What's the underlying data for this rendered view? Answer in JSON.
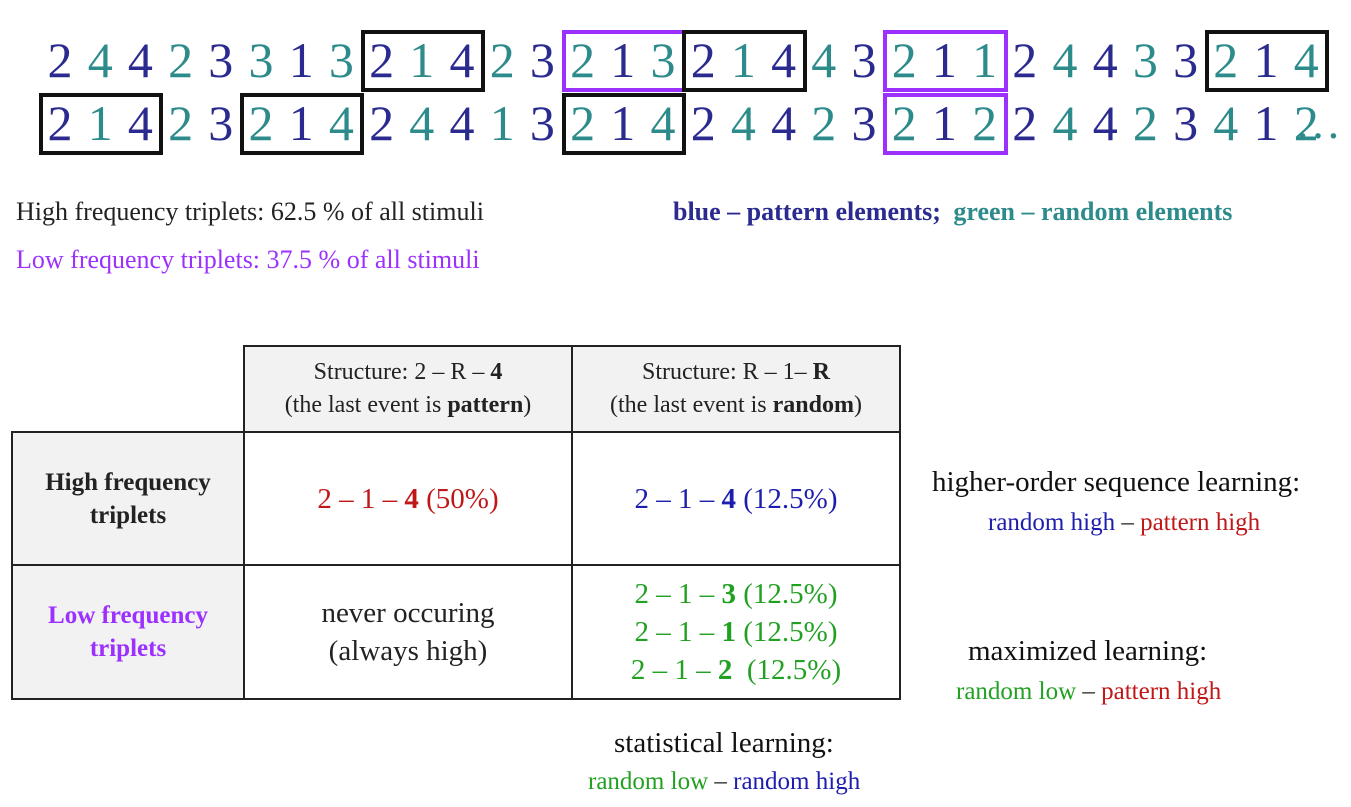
{
  "sequence": {
    "row1": [
      {
        "d": "2",
        "t": "pat"
      },
      {
        "d": "4",
        "t": "rnd"
      },
      {
        "d": "4",
        "t": "pat"
      },
      {
        "d": "2",
        "t": "rnd"
      },
      {
        "d": "3",
        "t": "pat"
      },
      {
        "d": "3",
        "t": "rnd"
      },
      {
        "d": "1",
        "t": "pat"
      },
      {
        "d": "3",
        "t": "rnd"
      },
      {
        "d": "2",
        "t": "pat"
      },
      {
        "d": "1",
        "t": "rnd"
      },
      {
        "d": "4",
        "t": "pat"
      },
      {
        "d": "2",
        "t": "rnd"
      },
      {
        "d": "3",
        "t": "pat"
      },
      {
        "d": "2",
        "t": "rnd"
      },
      {
        "d": "1",
        "t": "pat"
      },
      {
        "d": "3",
        "t": "rnd"
      },
      {
        "d": "2",
        "t": "pat"
      },
      {
        "d": "1",
        "t": "rnd"
      },
      {
        "d": "4",
        "t": "pat"
      },
      {
        "d": "4",
        "t": "rnd"
      },
      {
        "d": "3",
        "t": "pat"
      },
      {
        "d": "2",
        "t": "rnd"
      },
      {
        "d": "1",
        "t": "pat"
      },
      {
        "d": "1",
        "t": "rnd"
      },
      {
        "d": "2",
        "t": "pat"
      },
      {
        "d": "4",
        "t": "rnd"
      },
      {
        "d": "4",
        "t": "pat"
      },
      {
        "d": "3",
        "t": "rnd"
      },
      {
        "d": "3",
        "t": "pat"
      },
      {
        "d": "2",
        "t": "rnd"
      },
      {
        "d": "1",
        "t": "pat"
      },
      {
        "d": "4",
        "t": "rnd"
      }
    ],
    "row2": [
      {
        "d": "2",
        "t": "pat"
      },
      {
        "d": "1",
        "t": "rnd"
      },
      {
        "d": "4",
        "t": "pat"
      },
      {
        "d": "2",
        "t": "rnd"
      },
      {
        "d": "3",
        "t": "pat"
      },
      {
        "d": "2",
        "t": "rnd"
      },
      {
        "d": "1",
        "t": "pat"
      },
      {
        "d": "4",
        "t": "rnd"
      },
      {
        "d": "2",
        "t": "pat"
      },
      {
        "d": "4",
        "t": "rnd"
      },
      {
        "d": "4",
        "t": "pat"
      },
      {
        "d": "1",
        "t": "rnd"
      },
      {
        "d": "3",
        "t": "pat"
      },
      {
        "d": "2",
        "t": "rnd"
      },
      {
        "d": "1",
        "t": "pat"
      },
      {
        "d": "4",
        "t": "rnd"
      },
      {
        "d": "2",
        "t": "pat"
      },
      {
        "d": "4",
        "t": "rnd"
      },
      {
        "d": "4",
        "t": "pat"
      },
      {
        "d": "2",
        "t": "rnd"
      },
      {
        "d": "3",
        "t": "pat"
      },
      {
        "d": "2",
        "t": "rnd"
      },
      {
        "d": "1",
        "t": "pat"
      },
      {
        "d": "2",
        "t": "rnd"
      },
      {
        "d": "2",
        "t": "pat"
      },
      {
        "d": "4",
        "t": "rnd"
      },
      {
        "d": "4",
        "t": "pat"
      },
      {
        "d": "2",
        "t": "rnd"
      },
      {
        "d": "3",
        "t": "pat"
      },
      {
        "d": "4",
        "t": "rnd"
      },
      {
        "d": "1",
        "t": "pat"
      },
      {
        "d": "2",
        "t": "rnd"
      }
    ],
    "row1_boxes": [
      {
        "start": 8,
        "kind": "high"
      },
      {
        "start": 13,
        "kind": "low"
      },
      {
        "start": 16,
        "kind": "high"
      },
      {
        "start": 21,
        "kind": "low"
      },
      {
        "start": 29,
        "kind": "high"
      }
    ],
    "row2_boxes": [
      {
        "start": 0,
        "kind": "high"
      },
      {
        "start": 5,
        "kind": "high"
      },
      {
        "start": 13,
        "kind": "high"
      },
      {
        "start": 21,
        "kind": "low"
      }
    ],
    "ellipsis": "…"
  },
  "legend": {
    "high_text": "High frequency triplets: 62.5 % of all stimuli",
    "low_text": "Low frequency triplets: 37.5 % of all stimuli",
    "blue_text": "blue – pattern elements;",
    "green_text": "green – random elements"
  },
  "table": {
    "col1_line1": "Structure: 2 – R – ",
    "col1_line1_bold": "4",
    "col1_line2_a": "(the last event is ",
    "col1_line2_bold": "pattern",
    "col1_line2_b": ")",
    "col2_line1": "Structure: R – 1– ",
    "col2_line1_bold": "R",
    "col2_line2_a": "(the last event is ",
    "col2_line2_bold": "random",
    "col2_line2_b": ")",
    "row1_label_1": "High frequency",
    "row1_label_2": "triplets",
    "row2_label_1": "Low frequency",
    "row2_label_2": "triplets",
    "r1c1_a": "2 – 1 – ",
    "r1c1_b": "4",
    "r1c1_c": " (50%)",
    "r1c2_a": "2 – 1 – ",
    "r1c2_b": "4",
    "r1c2_c": " (12.5%)",
    "r2c1_line1": "never occuring",
    "r2c1_line2": "(always high)",
    "r2c2_1a": "2 – 1 – ",
    "r2c2_1b": "3",
    "r2c2_1c": " (12.5%)",
    "r2c2_2a": "2 – 1 – ",
    "r2c2_2b": "1",
    "r2c2_2c": " (12.5%)",
    "r2c2_3a": "2 – 1 – ",
    "r2c2_3b": "2",
    "r2c2_3c": "  (12.5%)"
  },
  "notes": {
    "higher_title": "higher-order sequence learning:",
    "higher_a": "random high",
    "higher_dash": " – ",
    "higher_b": "pattern high",
    "max_title": "maximized learning:",
    "max_a": "random low",
    "max_dash": " – ",
    "max_b": "pattern high",
    "stat_title": "statistical learning:",
    "stat_a": "random low",
    "stat_dash": " – ",
    "stat_b": "random high"
  },
  "colors": {
    "pattern": "#2b2b8f",
    "random": "#2e8b8b",
    "high_box": "#111111",
    "low_box": "#9b30ff",
    "red": "#c01818",
    "blue": "#1d1dae",
    "green": "#22a022"
  }
}
